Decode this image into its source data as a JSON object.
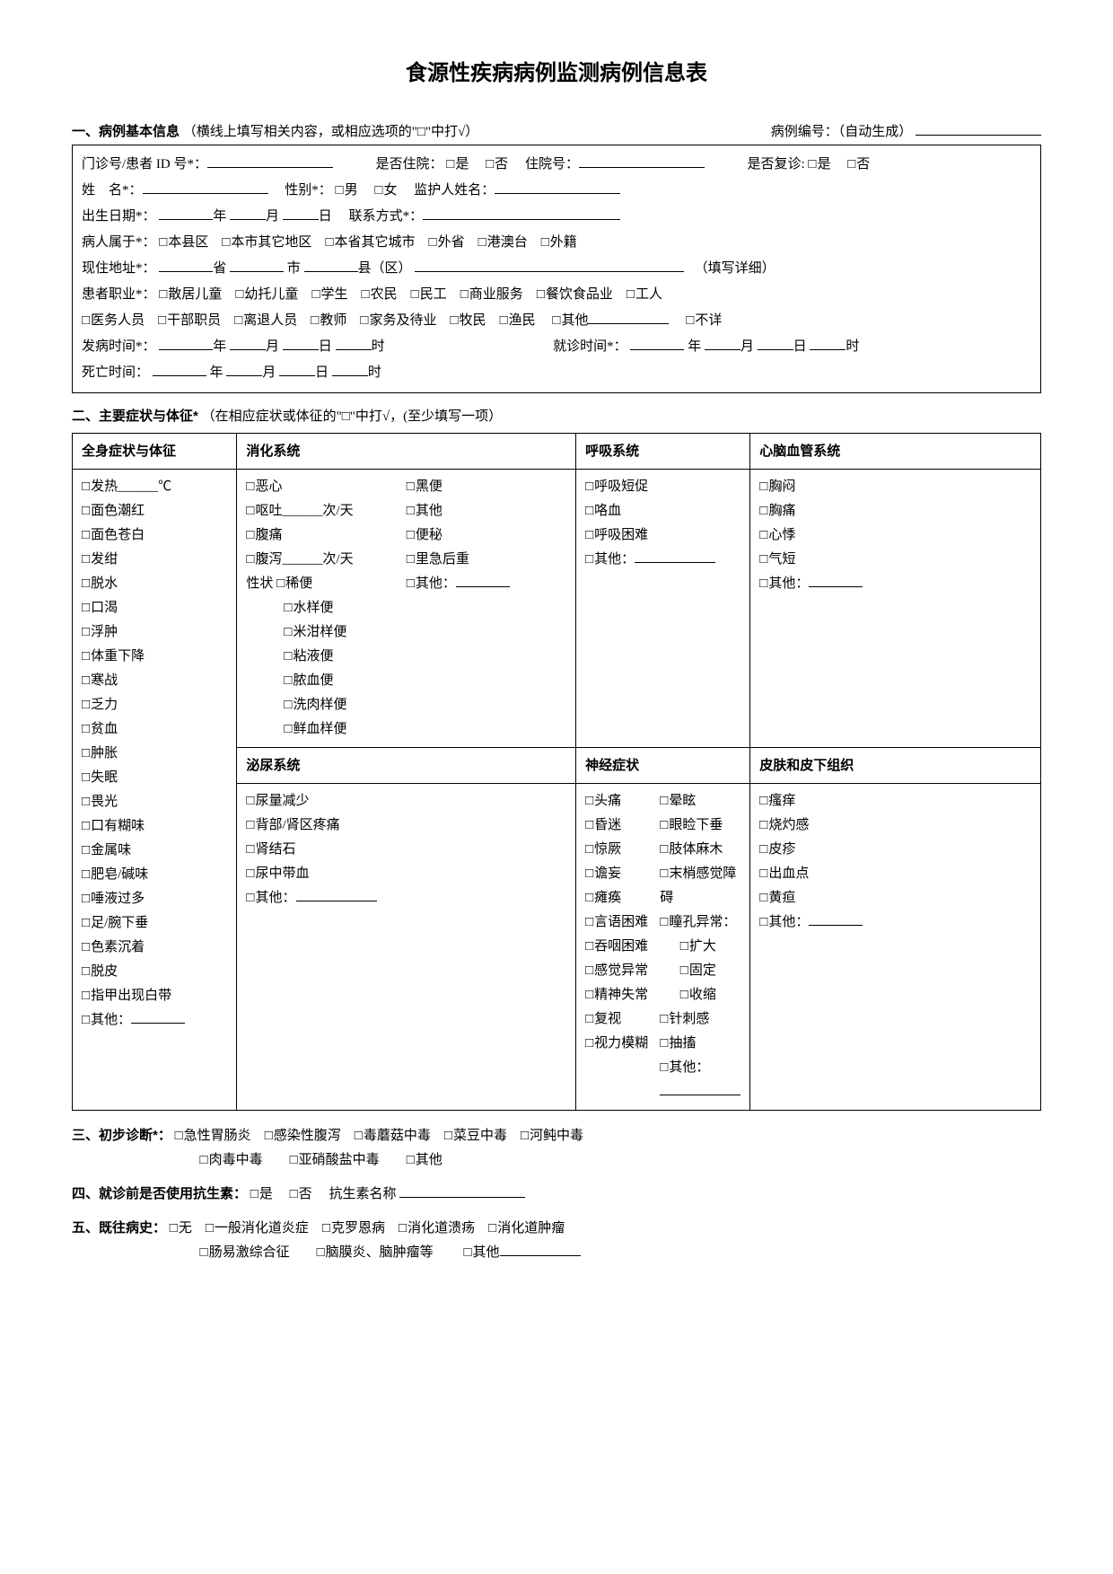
{
  "title": "食源性疾病病例监测病例信息表",
  "s1": {
    "header": "一、病例基本信息",
    "header_note": "（横线上填写相关内容，或相应选项的\"□\"中打√）",
    "case_no_label": "病例编号：（自动生成）",
    "l_outpatient": "门诊号/患者 ID 号*：",
    "l_is_inpatient": "是否住院：",
    "yes": "是",
    "no": "否",
    "l_inpatient_no": "住院号：",
    "l_is_followup": "是否复诊:",
    "l_name": "姓　名*：",
    "l_gender": "性别*：",
    "male": "男",
    "female": "女",
    "l_guardian": "监护人姓名：",
    "l_dob": "出生日期*：",
    "year": "年",
    "month": "月",
    "day": "日",
    "hour": "时",
    "l_contact": "联系方式*：",
    "l_belong": "病人属于*：",
    "belong_opts": [
      "本县区",
      "本市其它地区",
      "本省其它城市",
      "外省",
      "港澳台",
      "外籍"
    ],
    "l_addr": "现住地址*：",
    "prov": "省",
    "city": "市",
    "county": "县（区）",
    "addr_note": "（填写详细）",
    "l_occ": "患者职业*：",
    "occ1": [
      "散居儿童",
      "幼托儿童",
      "学生",
      "农民",
      "民工",
      "商业服务",
      "餐饮食品业",
      "工人"
    ],
    "occ2": [
      "医务人员",
      "干部职员",
      "离退人员",
      "教师",
      "家务及待业",
      "牧民",
      "渔民"
    ],
    "occ_other": "其他",
    "occ_unknown": "不详",
    "l_onset": "发病时间*：",
    "l_visit": "就诊时间*：",
    "l_death": "死亡时间："
  },
  "s2": {
    "header": "二、主要症状与体征*",
    "header_note": "（在相应症状或体征的\"□\"中打√，(至少填写一项）",
    "h_general": "全身症状与体征",
    "h_digest": "消化系统",
    "h_resp": "呼吸系统",
    "h_cardio": "心脑血管系统",
    "h_urin": "泌尿系统",
    "h_neuro": "神经症状",
    "h_skin": "皮肤和皮下组织",
    "general": [
      "发热______℃",
      "面色潮红",
      "面色苍白",
      "发绀",
      "脱水",
      "口渴",
      "浮肿",
      "体重下降",
      "寒战",
      "乏力",
      "贫血",
      "肿胀",
      "失眠",
      "畏光",
      "口有糊味",
      "金属味",
      "肥皂/碱味",
      "唾液过多",
      "足/腕下垂",
      "色素沉着",
      "脱皮",
      "指甲出现白带"
    ],
    "general_other": "其他：",
    "digest_a": [
      "恶心",
      "呕吐______次/天",
      "腹痛",
      "腹泻______次/天"
    ],
    "digest_texture_lbl": "性状",
    "digest_texture": [
      "稀便",
      "水样便",
      "米泔样便",
      "粘液便",
      "脓血便",
      "洗肉样便",
      "鲜血样便"
    ],
    "digest_b": [
      "黑便",
      "其他",
      "便秘",
      "里急后重"
    ],
    "digest_other": "其他：",
    "resp": [
      "呼吸短促",
      "咯血",
      "呼吸困难"
    ],
    "resp_other": "其他：",
    "cardio": [
      "胸闷",
      "胸痛",
      "心悸",
      "气短"
    ],
    "cardio_other": "其他：",
    "urin": [
      "尿量减少",
      "背部/肾区疼痛",
      "肾结石",
      "尿中带血"
    ],
    "urin_other": "其他：",
    "neuro_a": [
      "头痛",
      "昏迷",
      "惊厥",
      "谵妄",
      "瘫痪",
      "言语困难",
      "吞咽困难",
      "感觉异常",
      "精神失常",
      "复视",
      "视力模糊"
    ],
    "neuro_b": [
      "晕眩",
      "眼睑下垂",
      "肢体麻木",
      "末梢感觉障碍"
    ],
    "neuro_pupil": "瞳孔异常：",
    "neuro_pupil_opts": [
      "扩大",
      "固定",
      "收缩"
    ],
    "neuro_b2": [
      "针刺感",
      "抽搐"
    ],
    "neuro_other": "其他：",
    "skin": [
      "瘙痒",
      "烧灼感",
      "皮疹",
      "出血点",
      "黄疸"
    ],
    "skin_other": "其他："
  },
  "s3": {
    "header": "三、初步诊断*：",
    "opts1": [
      "急性胃肠炎",
      "感染性腹泻",
      "毒蘑菇中毒",
      "菜豆中毒",
      "河鲀中毒"
    ],
    "opts2": [
      "肉毒中毒",
      "亚硝酸盐中毒",
      "其他"
    ]
  },
  "s4": {
    "header": "四、就诊前是否使用抗生素：",
    "yes": "是",
    "no": "否",
    "name_label": "抗生素名称"
  },
  "s5": {
    "header": "五、既往病史：",
    "opts1": [
      "无",
      "一般消化道炎症",
      "克罗恩病",
      "消化道溃疡",
      "消化道肿瘤"
    ],
    "opts2": [
      "肠易激综合征",
      "脑膜炎、脑肿瘤等"
    ],
    "other": "其他"
  }
}
